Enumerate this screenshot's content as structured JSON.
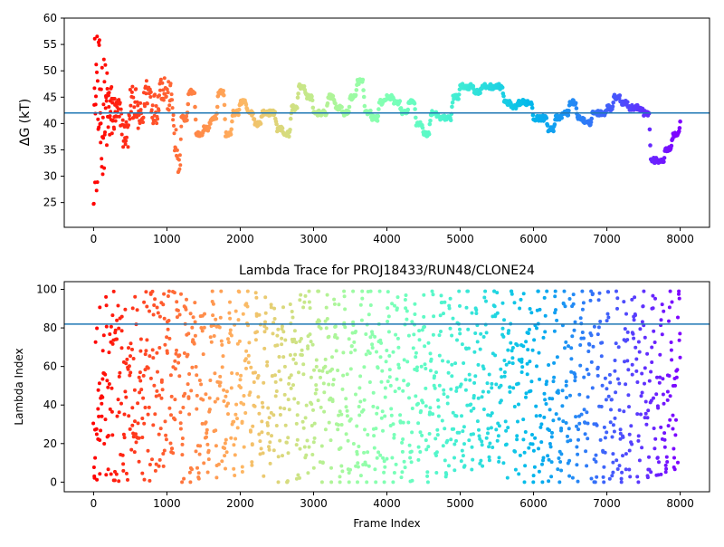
{
  "chart_data": [
    {
      "type": "scatter",
      "title": "",
      "xlabel": "",
      "ylabel": "ΔG (kT)",
      "xlim": [
        -400,
        8400
      ],
      "ylim": [
        20.3,
        60
      ],
      "x_ticks": [
        "0",
        "1000",
        "2000",
        "3000",
        "4000",
        "5000",
        "6000",
        "7000",
        "8000"
      ],
      "y_ticks": [
        "25",
        "30",
        "35",
        "40",
        "45",
        "50",
        "55",
        "60"
      ],
      "hline": 42,
      "hline_color": "#1f77b4",
      "colormap": "rainbow (red at frame 0 → violet at frame 8000)",
      "series_points": "≈8000 frames, one point per frame, colored by frame index",
      "trace_approx": [
        [
          0,
          45
        ],
        [
          50,
          38
        ],
        [
          100,
          44
        ],
        [
          150,
          41
        ],
        [
          200,
          46
        ],
        [
          300,
          42
        ],
        [
          400,
          38
        ],
        [
          500,
          44
        ],
        [
          600,
          41
        ],
        [
          700,
          46
        ],
        [
          800,
          43
        ],
        [
          900,
          47
        ],
        [
          1000,
          45
        ],
        [
          1100,
          36
        ],
        [
          1140,
          32
        ],
        [
          1200,
          41
        ],
        [
          1300,
          46
        ],
        [
          1400,
          38
        ],
        [
          1500,
          39
        ],
        [
          1600,
          41
        ],
        [
          1700,
          46
        ],
        [
          1800,
          38
        ],
        [
          1900,
          42
        ],
        [
          2000,
          44
        ],
        [
          2100,
          42
        ],
        [
          2200,
          40
        ],
        [
          2300,
          42
        ],
        [
          2400,
          42
        ],
        [
          2500,
          39
        ],
        [
          2600,
          38
        ],
        [
          2700,
          43
        ],
        [
          2800,
          47
        ],
        [
          2900,
          45
        ],
        [
          3000,
          42
        ],
        [
          3100,
          42
        ],
        [
          3200,
          45
        ],
        [
          3300,
          43
        ],
        [
          3400,
          42
        ],
        [
          3500,
          45
        ],
        [
          3600,
          48
        ],
        [
          3700,
          42
        ],
        [
          3800,
          41
        ],
        [
          3900,
          44
        ],
        [
          4000,
          45
        ],
        [
          4100,
          44
        ],
        [
          4200,
          42
        ],
        [
          4300,
          44
        ],
        [
          4400,
          40
        ],
        [
          4500,
          38
        ],
        [
          4600,
          42
        ],
        [
          4700,
          41
        ],
        [
          4800,
          41
        ],
        [
          4900,
          45
        ],
        [
          5000,
          47
        ],
        [
          5100,
          47
        ],
        [
          5200,
          46
        ],
        [
          5300,
          47
        ],
        [
          5400,
          47
        ],
        [
          5500,
          47
        ],
        [
          5600,
          44
        ],
        [
          5700,
          43
        ],
        [
          5800,
          44
        ],
        [
          5900,
          44
        ],
        [
          6000,
          41
        ],
        [
          6100,
          41
        ],
        [
          6200,
          39
        ],
        [
          6300,
          41
        ],
        [
          6400,
          42
        ],
        [
          6500,
          44
        ],
        [
          6600,
          41
        ],
        [
          6700,
          40
        ],
        [
          6800,
          42
        ],
        [
          6900,
          42
        ],
        [
          7000,
          43
        ],
        [
          7100,
          45
        ],
        [
          7200,
          44
        ],
        [
          7300,
          43
        ],
        [
          7400,
          43
        ],
        [
          7500,
          42
        ],
        [
          7600,
          33
        ],
        [
          7700,
          33
        ],
        [
          7800,
          35
        ],
        [
          7900,
          38
        ],
        [
          8000,
          40
        ]
      ],
      "early_scatter_range": [
        20.8,
        60
      ]
    },
    {
      "type": "scatter",
      "title": "Lambda Trace for PROJ18433/RUN48/CLONE24",
      "xlabel": "Frame Index",
      "ylabel": "Lambda Index",
      "xlim": [
        -400,
        8400
      ],
      "ylim": [
        -5,
        104
      ],
      "x_ticks": [
        "0",
        "1000",
        "2000",
        "3000",
        "4000",
        "5000",
        "6000",
        "7000",
        "8000"
      ],
      "y_ticks": [
        "0",
        "20",
        "40",
        "60",
        "80",
        "100"
      ],
      "hline": 82,
      "hline_color": "#1f77b4",
      "colormap": "rainbow (red at frame 0 → violet at frame 8000)",
      "series_points": "≈8000 frames, lambda index 0–99 per frame, colored by frame index",
      "lambda_range": [
        0,
        99
      ]
    }
  ]
}
